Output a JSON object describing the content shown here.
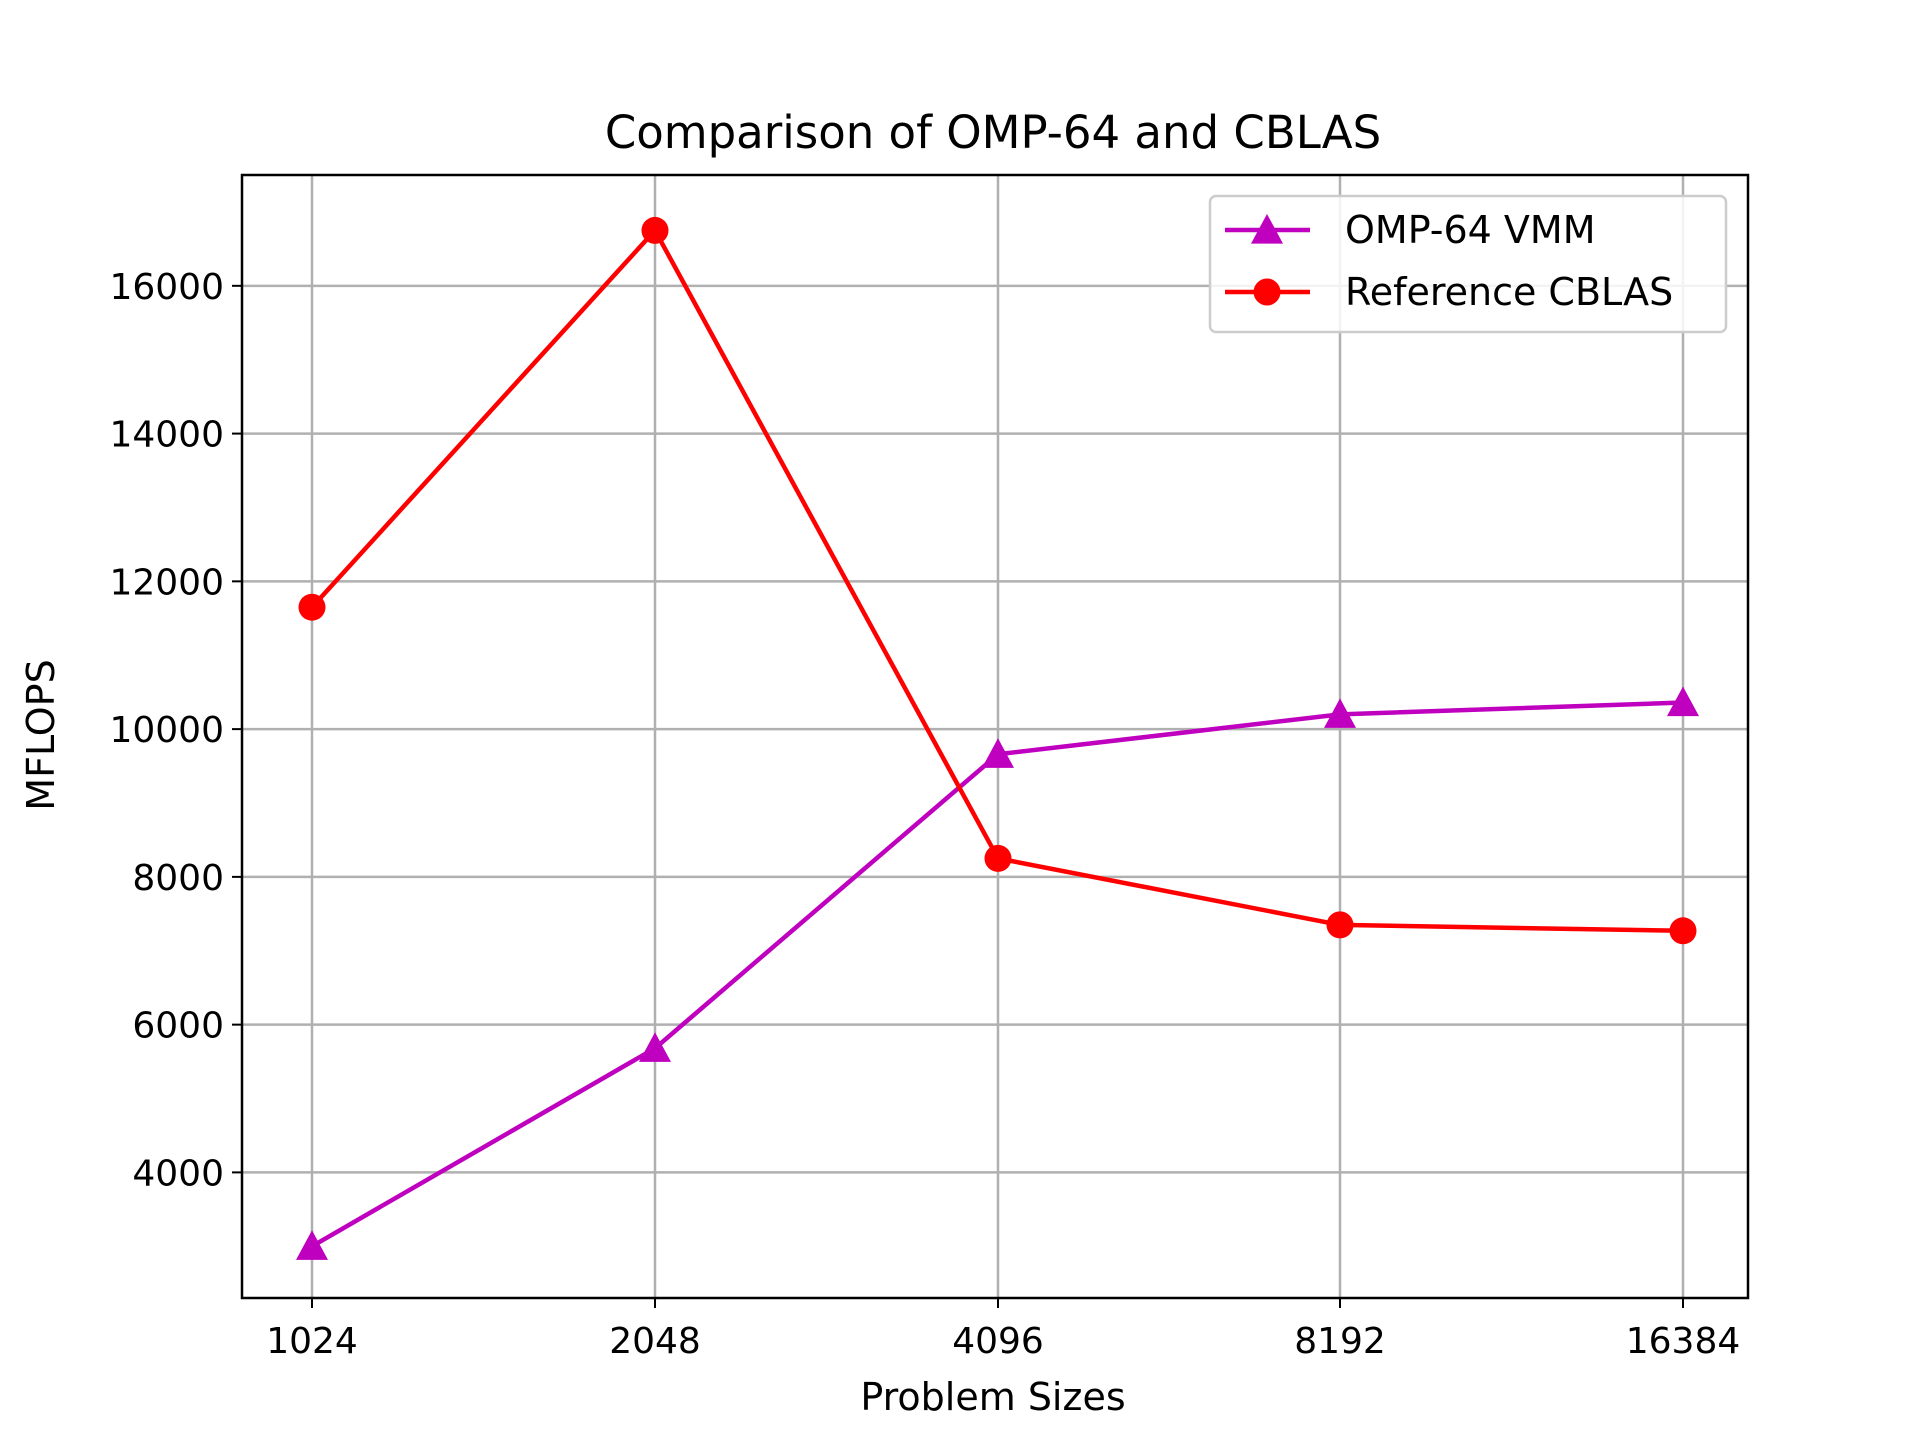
{
  "chart_data": {
    "type": "line",
    "title": "Comparison of OMP-64 and CBLAS",
    "xlabel": "Problem Sizes",
    "ylabel": "MFLOPS",
    "categories": [
      "1024",
      "2048",
      "4096",
      "8192",
      "16384"
    ],
    "yticks": [
      4000,
      6000,
      8000,
      10000,
      12000,
      14000,
      16000
    ],
    "ylim": [
      2300,
      17500
    ],
    "grid": true,
    "legend_position": "upper right",
    "series": [
      {
        "name": "OMP-64 VMM",
        "color": "#bf00bf",
        "marker": "triangle",
        "values": [
          3000,
          5680,
          9660,
          10200,
          10360
        ]
      },
      {
        "name": "Reference CBLAS",
        "color": "#ff0000",
        "marker": "circle",
        "values": [
          11650,
          16750,
          8250,
          7350,
          7270
        ]
      }
    ]
  }
}
